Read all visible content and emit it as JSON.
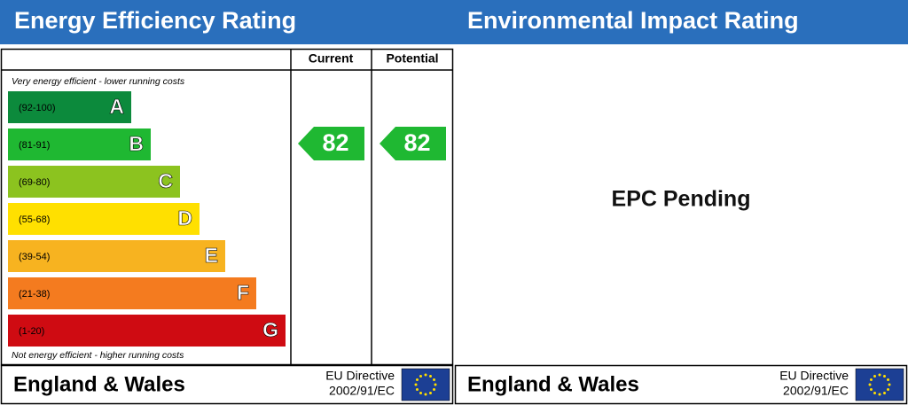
{
  "left": {
    "title": "Energy Efficiency Rating",
    "headers": [
      "Current",
      "Potential"
    ],
    "top_note": "Very energy efficient - lower running costs",
    "bottom_note": "Not energy efficient - higher running costs",
    "bands": [
      {
        "range": "(92-100)",
        "letter": "A"
      },
      {
        "range": "(81-91)",
        "letter": "B"
      },
      {
        "range": "(69-80)",
        "letter": "C"
      },
      {
        "range": "(55-68)",
        "letter": "D"
      },
      {
        "range": "(39-54)",
        "letter": "E"
      },
      {
        "range": "(21-38)",
        "letter": "F"
      },
      {
        "range": "(1-20)",
        "letter": "G"
      }
    ],
    "current": 82,
    "potential": 82,
    "footer": {
      "region": "England & Wales",
      "directive": [
        "EU Directive",
        "2002/91/EC"
      ]
    }
  },
  "right": {
    "title": "Environmental Impact Rating",
    "message": "EPC Pending",
    "footer": {
      "region": "England & Wales",
      "directive": [
        "EU Directive",
        "2002/91/EC"
      ]
    }
  }
}
